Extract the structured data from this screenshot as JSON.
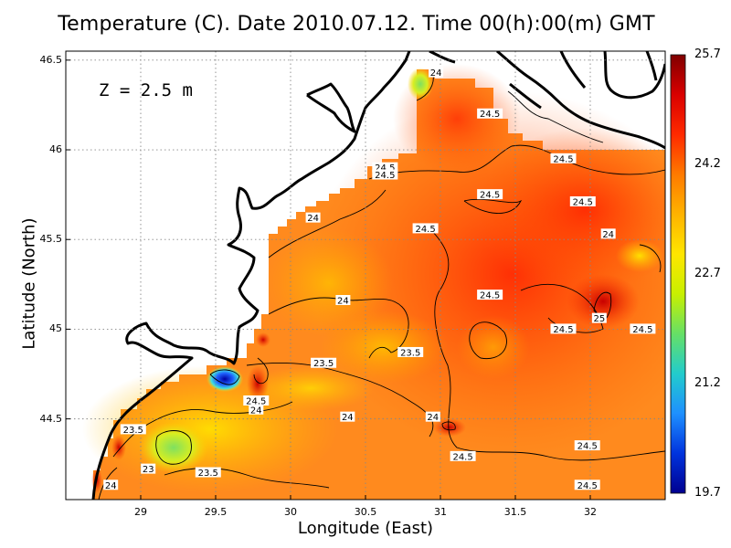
{
  "title": "Temperature (C). Date 2010.07.12. Time 00(h):00(m) GMT",
  "depth_label": "Z = 2.5 m",
  "xlabel": "Longitude (East)",
  "ylabel": "Latitude (North)",
  "x_ticks": [
    "29",
    "29.5",
    "30",
    "30.5",
    "31",
    "31.5",
    "32"
  ],
  "y_ticks": [
    "46.5",
    "46",
    "45.5",
    "45",
    "44.5"
  ],
  "colorbar": {
    "labels": [
      "25.7",
      "24.2",
      "22.7",
      "21.2",
      "19.7"
    ],
    "min": 19.7,
    "max": 25.7,
    "colors": [
      "#800000",
      "#d90000",
      "#ff2a00",
      "#ff7a00",
      "#ffb300",
      "#ffe600",
      "#c8f000",
      "#66e066",
      "#22cccc",
      "#1e90ff",
      "#0033dd",
      "#000090"
    ]
  },
  "contour_labels": [
    {
      "text": "24",
      "lon": 30.97,
      "lat": 46.43
    },
    {
      "text": "24.5",
      "lon": 31.33,
      "lat": 46.2
    },
    {
      "text": "24.5",
      "lon": 30.63,
      "lat": 45.9
    },
    {
      "text": "24.5",
      "lon": 30.63,
      "lat": 45.86
    },
    {
      "text": "24.5",
      "lon": 31.82,
      "lat": 45.95
    },
    {
      "text": "24.5",
      "lon": 31.33,
      "lat": 45.75
    },
    {
      "text": "24.5",
      "lon": 31.95,
      "lat": 45.71
    },
    {
      "text": "24",
      "lon": 30.15,
      "lat": 45.62
    },
    {
      "text": "24.5",
      "lon": 30.9,
      "lat": 45.56
    },
    {
      "text": "24",
      "lon": 32.12,
      "lat": 45.53
    },
    {
      "text": "24",
      "lon": 30.35,
      "lat": 45.16
    },
    {
      "text": "24.5",
      "lon": 31.33,
      "lat": 45.19
    },
    {
      "text": "25",
      "lon": 32.06,
      "lat": 45.06
    },
    {
      "text": "24.5",
      "lon": 31.82,
      "lat": 45.0
    },
    {
      "text": "24.5",
      "lon": 32.35,
      "lat": 45.0
    },
    {
      "text": "23.5",
      "lon": 30.8,
      "lat": 44.87
    },
    {
      "text": "23.5",
      "lon": 30.22,
      "lat": 44.81
    },
    {
      "text": "24.5",
      "lon": 29.77,
      "lat": 44.6
    },
    {
      "text": "24",
      "lon": 29.77,
      "lat": 44.55
    },
    {
      "text": "24",
      "lon": 30.38,
      "lat": 44.51
    },
    {
      "text": "24",
      "lon": 30.95,
      "lat": 44.51
    },
    {
      "text": "23.5",
      "lon": 28.95,
      "lat": 44.44
    },
    {
      "text": "24.5",
      "lon": 31.15,
      "lat": 44.29
    },
    {
      "text": "24.5",
      "lon": 31.98,
      "lat": 44.35
    },
    {
      "text": "23",
      "lon": 29.05,
      "lat": 44.22
    },
    {
      "text": "23.5",
      "lon": 29.45,
      "lat": 44.2
    },
    {
      "text": "24",
      "lon": 28.8,
      "lat": 44.13
    },
    {
      "text": "24.5",
      "lon": 31.98,
      "lat": 44.13
    }
  ]
}
